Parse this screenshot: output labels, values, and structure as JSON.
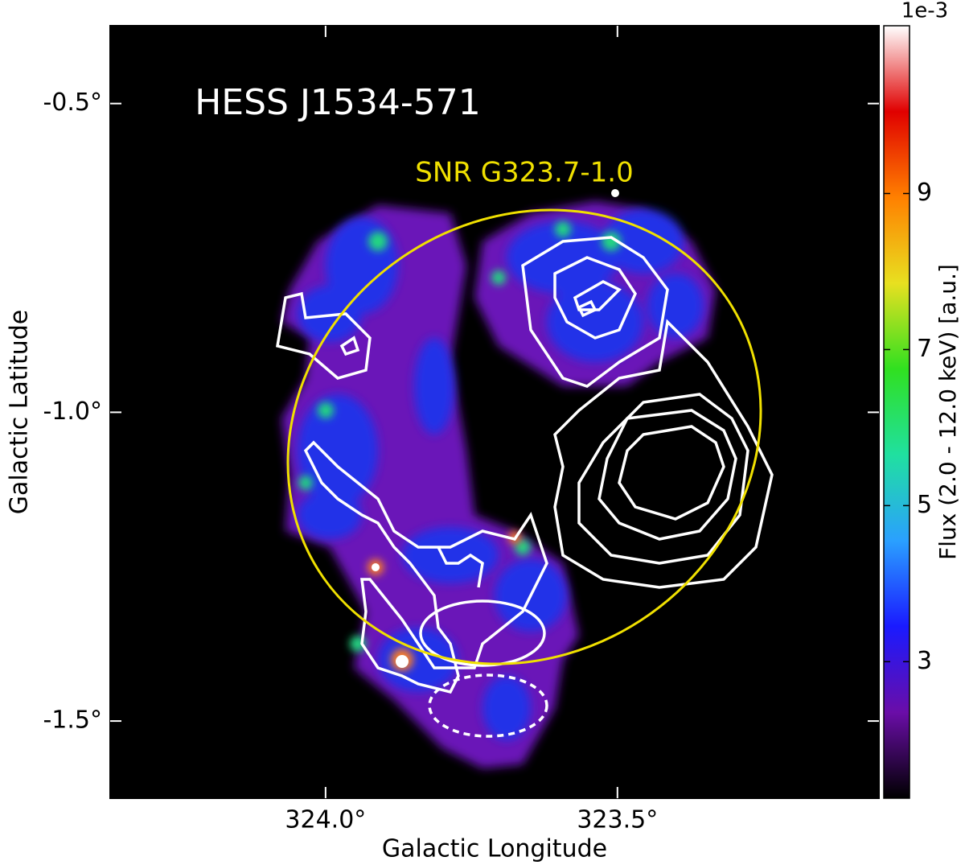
{
  "chart_data": {
    "type": "skymap",
    "title": "HESS J1534-571",
    "annotations": [
      "SNR G323.7-1.0"
    ],
    "x_label": "Galactic Longitude",
    "y_label": "Galactic Latitude",
    "xlim": [
      324.369,
      323.052
    ],
    "ylim": [
      -1.625,
      -0.374
    ],
    "xticks": [
      {
        "value": 324.0,
        "label": "324.0°"
      },
      {
        "value": 323.5,
        "label": "323.5°"
      }
    ],
    "yticks": [
      {
        "value": -0.5,
        "label": "-0.5°"
      },
      {
        "value": -1.0,
        "label": "-1.0°"
      },
      {
        "value": -1.5,
        "label": "-1.5°"
      }
    ],
    "colorbar": {
      "label": "Flux (2.0 - 12.0 keV) [a.u.]",
      "offset_label": "1e-3",
      "lim": [
        1.25,
        11.15
      ],
      "ticks": [
        3,
        5,
        7,
        9
      ],
      "colormap": [
        "#000000",
        "#6a0da8",
        "#1a1aff",
        "#2aa0ff",
        "#20e0a0",
        "#30e020",
        "#e8e020",
        "#ff8000",
        "#e00000",
        "#ffffff"
      ]
    }
  }
}
